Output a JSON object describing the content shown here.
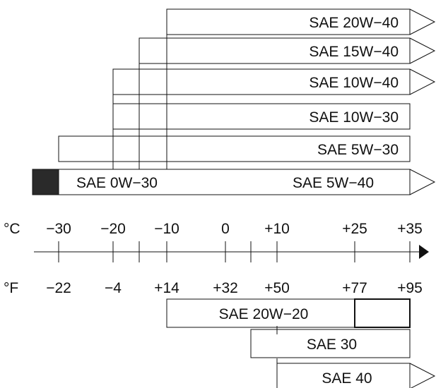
{
  "celsius_unit": "°C",
  "fahrenheit_unit": "°F",
  "celsius_ticks": [
    "−30",
    "−20",
    "−10",
    "0",
    "+10",
    "+25",
    "+35"
  ],
  "fahrenheit_ticks": [
    "−22",
    "−4",
    "+14",
    "+32",
    "+50",
    "+77",
    "+95"
  ],
  "bars_upper": [
    {
      "label": "SAE 20W−40",
      "from_c": -10,
      "to_c": 35,
      "open_end": true
    },
    {
      "label": "SAE 15W−40",
      "from_c": -15,
      "to_c": 35,
      "open_end": true
    },
    {
      "label": "SAE 10W−40",
      "from_c": -20,
      "to_c": 35,
      "open_end": true
    },
    {
      "label": "SAE 10W−30",
      "from_c": -20,
      "to_c": 35,
      "open_end": false
    },
    {
      "label": "SAE 5W−30",
      "from_c": -30,
      "to_c": 35,
      "open_end": false
    }
  ],
  "combined_bar": {
    "left_label": "SAE 0W−30",
    "right_label": "SAE 5W−40",
    "filled_from_c": -35,
    "from_c": -30,
    "to_c": 35,
    "open_end": true
  },
  "bars_lower": [
    {
      "label": "SAE 20W−20",
      "from_c": -10,
      "to_c": 35,
      "inner_box_from_c": 25,
      "open_end": false
    },
    {
      "label": "SAE 30",
      "from_c": 5,
      "to_c": 35,
      "open_end": false
    },
    {
      "label": "SAE 40",
      "from_c": 10,
      "to_c": 35,
      "open_end": true
    }
  ],
  "colors": {
    "line": "#111111",
    "fill_dark": "#2a2a2a"
  }
}
